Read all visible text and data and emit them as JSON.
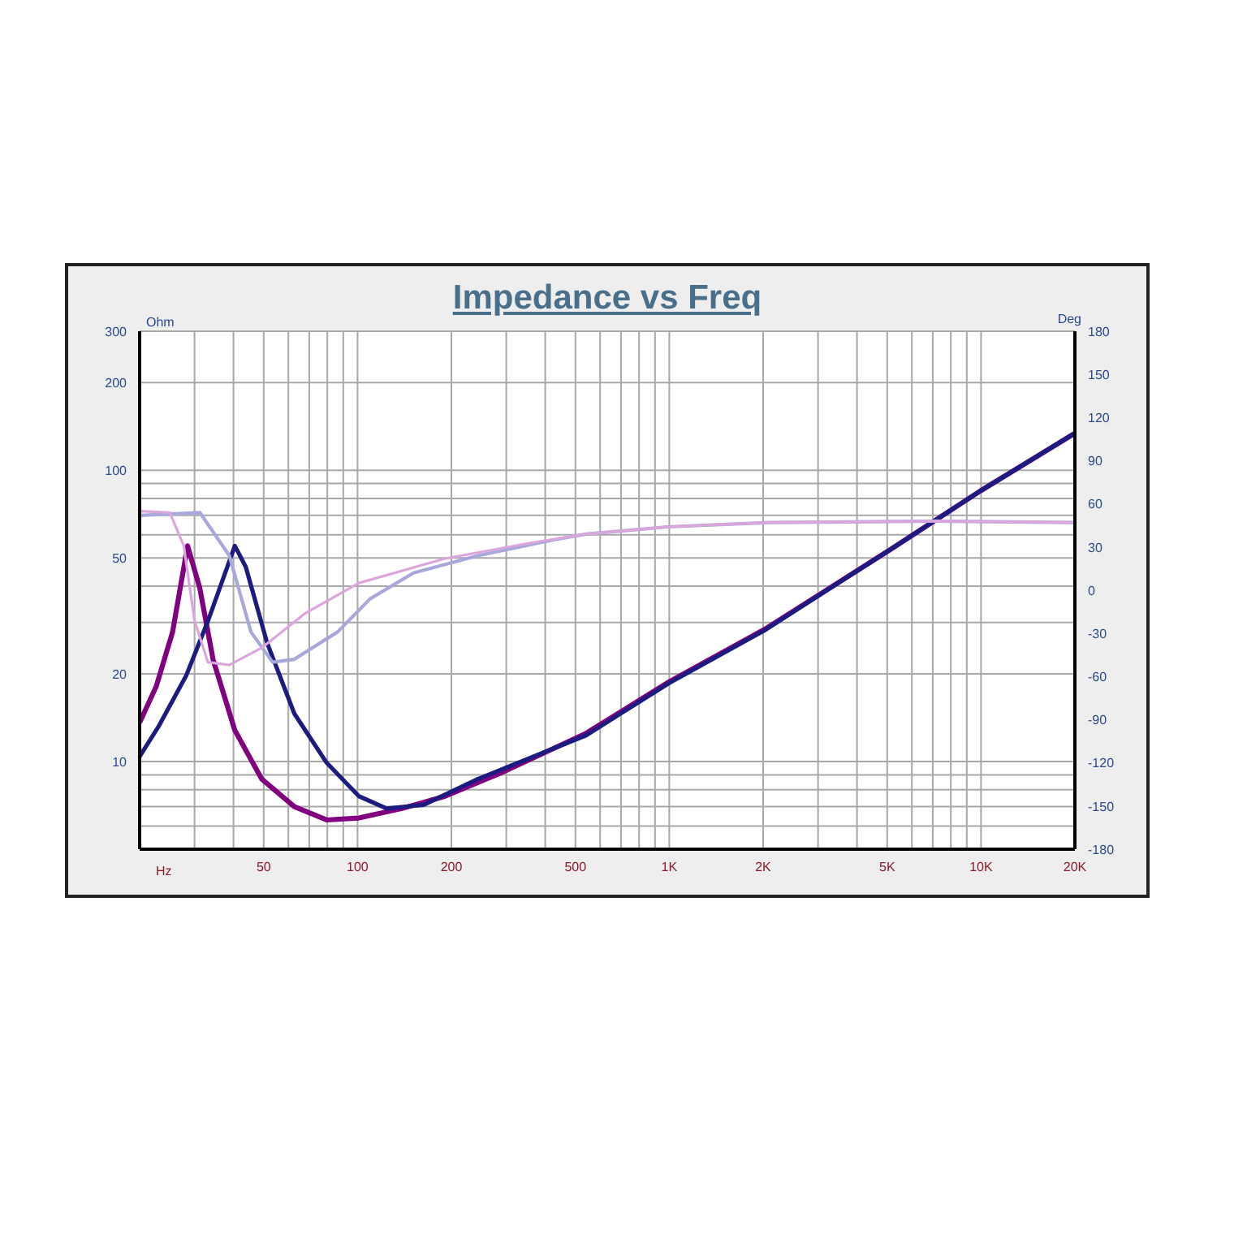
{
  "chart_data": {
    "type": "line",
    "title": "Impedance vs Freq",
    "xlabel": "Hz",
    "ylabel": "Ohm",
    "y2label": "Deg",
    "log": "xy",
    "grid": true,
    "marker": "none",
    "line_style": "solid",
    "xlim": [
      20,
      20000
    ],
    "xticks": [
      {
        "value": 20,
        "label": null
      },
      {
        "value": 30,
        "label": null
      },
      {
        "value": 40,
        "label": null
      },
      50,
      {
        "value": 60,
        "label": null
      },
      {
        "value": 70,
        "label": null
      },
      {
        "value": 80,
        "label": null
      },
      {
        "value": 90,
        "label": null
      },
      100,
      200,
      {
        "value": 300,
        "label": null
      },
      {
        "value": 400,
        "label": null
      },
      500,
      {
        "value": 600,
        "label": null
      },
      {
        "value": 700,
        "label": null
      },
      {
        "value": 800,
        "label": null
      },
      {
        "value": 900,
        "label": null
      },
      {
        "value": 1000,
        "label": "1K"
      },
      {
        "value": 2000,
        "label": "2K"
      },
      {
        "value": 3000,
        "label": null
      },
      {
        "value": 4000,
        "label": null
      },
      {
        "value": 5000,
        "label": "5K"
      },
      {
        "value": 6000,
        "label": null
      },
      {
        "value": 7000,
        "label": null
      },
      {
        "value": 8000,
        "label": null
      },
      {
        "value": 9000,
        "label": null
      },
      {
        "value": 10000,
        "label": "10K"
      },
      {
        "value": 20000,
        "label": "20K"
      }
    ],
    "ylim": [
      5,
      300
    ],
    "yticks": [
      {
        "value": 5,
        "label": null
      },
      {
        "value": 6,
        "label": null
      },
      {
        "value": 7,
        "label": null
      },
      {
        "value": 8,
        "label": null
      },
      {
        "value": 9,
        "label": null
      },
      10,
      20,
      {
        "value": 30,
        "label": null
      },
      {
        "value": 40,
        "label": null
      },
      50,
      {
        "value": 60,
        "label": null
      },
      {
        "value": 70,
        "label": null
      },
      {
        "value": 80,
        "label": null
      },
      {
        "value": 90,
        "label": null
      },
      100,
      200,
      300
    ],
    "y2lim": [
      -180,
      180
    ],
    "y2ticks": [
      -180,
      -150,
      -120,
      -90,
      -60,
      -30,
      0,
      30,
      60,
      90,
      120,
      150,
      180
    ],
    "series": [
      {
        "color": "#800080",
        "x": [
          20,
          22.6,
          25.5,
          28.5,
          31.2,
          34.4,
          40.4,
          49.3,
          62.7,
          79.6,
          101,
          139,
          191,
          286,
          541,
          1000,
          2020,
          5060,
          9970,
          20000
        ],
        "values": [
          13.6,
          18.1,
          27.8,
          55,
          39.3,
          22.4,
          12.8,
          8.7,
          7.0,
          6.3,
          6.4,
          6.9,
          7.6,
          9.1,
          12.5,
          18.8,
          28.4,
          53,
          85,
          134
        ]
      },
      {
        "color": "#1c1c80",
        "x": [
          20,
          23.1,
          28.2,
          33.1,
          40.4,
          43.8,
          51.3,
          62.7,
          79.6,
          101,
          124,
          163,
          243,
          541,
          1000,
          2020,
          5060,
          9970,
          20000
        ],
        "values": [
          10.4,
          13.3,
          19.7,
          30.3,
          55,
          46.6,
          25.5,
          14.6,
          9.9,
          7.6,
          6.9,
          7.1,
          8.7,
          12.3,
          18.6,
          28.2,
          53,
          85,
          134
        ]
      },
      {
        "color": "#a8a8dc",
        "axis": "y2",
        "x": [
          20,
          31.2,
          38.8,
          45.5,
          53.4,
          62.7,
          86.3,
          109.7,
          151,
          243,
          425,
          541,
          983,
          2090,
          6970,
          20000
        ],
        "values": [
          52,
          54,
          24,
          -29,
          -50,
          -48,
          -29,
          -6,
          12,
          24,
          35,
          39,
          44,
          47,
          48,
          47
        ]
      },
      {
        "color": "#dca6dc",
        "axis": "y2",
        "x": [
          20,
          25,
          27.7,
          30,
          33.1,
          38.8,
          49.3,
          68,
          101,
          191,
          362,
          541,
          983,
          2090,
          6970,
          20000
        ],
        "values": [
          55,
          54,
          31,
          -21,
          -50,
          -52,
          -40,
          -16,
          5,
          22,
          33,
          39,
          44,
          47,
          48,
          47
        ]
      }
    ]
  }
}
